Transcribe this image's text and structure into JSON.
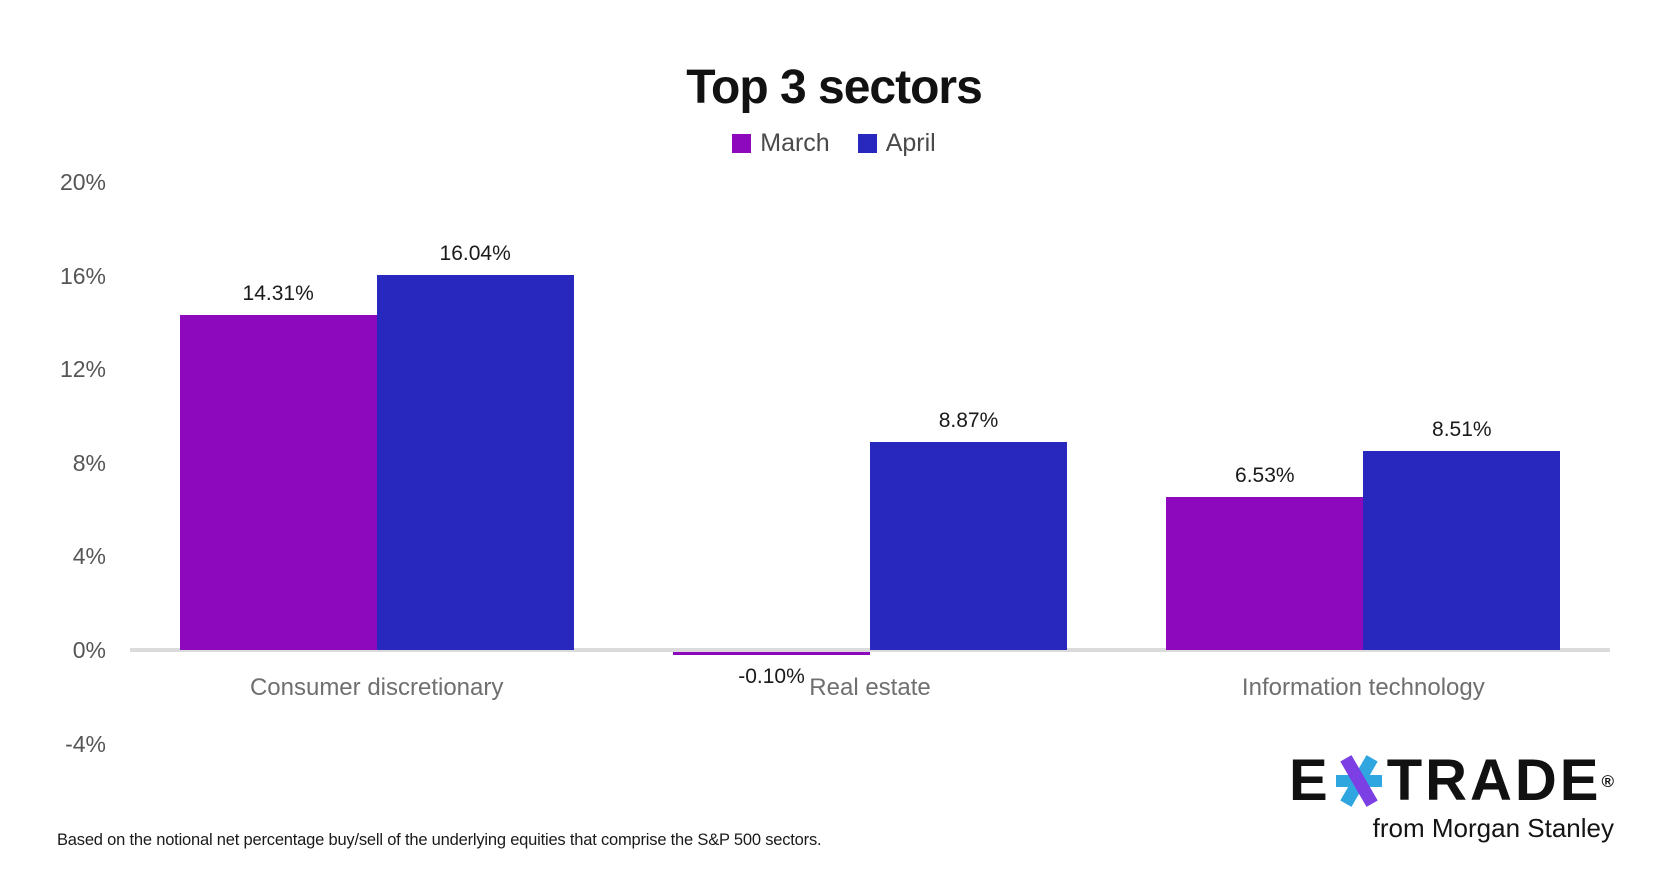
{
  "title": "Top 3 sectors",
  "legend": [
    {
      "label": "March",
      "color": "#8c09be"
    },
    {
      "label": "April",
      "color": "#2828be"
    }
  ],
  "chart_data": {
    "type": "bar",
    "title": "Top 3 sectors",
    "categories": [
      "Consumer discretionary",
      "Real estate",
      "Information technology"
    ],
    "series": [
      {
        "name": "March",
        "color": "#8c09be",
        "values": [
          14.31,
          -0.1,
          6.53
        ],
        "labels": [
          "14.31%",
          "-0.10%",
          "6.53%"
        ]
      },
      {
        "name": "April",
        "color": "#2828be",
        "values": [
          16.04,
          8.87,
          8.51
        ],
        "labels": [
          "16.04%",
          "8.87%",
          "8.51%"
        ]
      }
    ],
    "ylim": [
      -4,
      20
    ],
    "yticks": [
      {
        "value": 20,
        "label": "20%"
      },
      {
        "value": 16,
        "label": "16%"
      },
      {
        "value": 12,
        "label": "12%"
      },
      {
        "value": 8,
        "label": "8%"
      },
      {
        "value": 4,
        "label": "4%"
      },
      {
        "value": 0,
        "label": "0%"
      },
      {
        "value": -4,
        "label": "-4%"
      }
    ],
    "xlabel": "",
    "ylabel": "",
    "grid": false,
    "legend_position": "top",
    "axis_color": "#dbdbdb"
  },
  "footnote": "Based on the notional net percentage buy/sell of the underlying equities that comprise the S&P 500 sectors.",
  "logo": {
    "brand_left": "E",
    "brand_right": "TRADE",
    "registered": "®",
    "tagline": "from Morgan Stanley",
    "star_blue": "#2fa6df",
    "star_purple": "#7b3fe4"
  }
}
